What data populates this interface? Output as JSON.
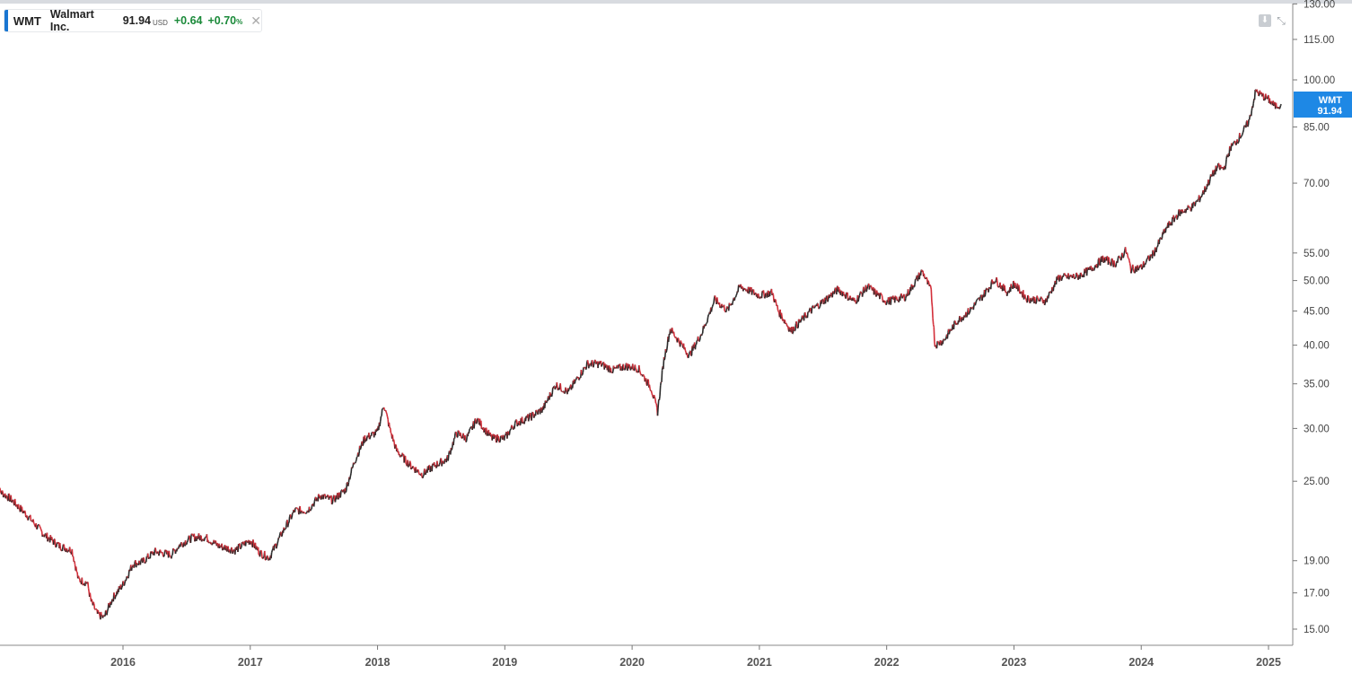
{
  "legend": {
    "symbol": "WMT",
    "name": "Walmart Inc.",
    "price": "91.94",
    "currency": "USD",
    "change": "+0.64",
    "change_pct": "+0.70",
    "pct_symbol": "%"
  },
  "price_tag": {
    "symbol": "WMT",
    "price": "91.94"
  },
  "colors": {
    "up": "#2b2b2b",
    "down": "#d32f3a",
    "accent": "#1e88e5",
    "change": "#1b8a3a"
  },
  "chart_data": {
    "type": "line",
    "title": "",
    "xlabel": "",
    "ylabel": "",
    "y_scale": "log",
    "ylim": [
      14.5,
      130
    ],
    "xlim": [
      2015.0,
      2025.2
    ],
    "y_ticks": [
      15,
      17,
      19,
      25,
      30,
      35,
      40,
      45,
      50,
      55,
      70,
      85,
      100,
      115,
      130
    ],
    "y_tick_labels": [
      "15.00",
      "17.00",
      "19.00",
      "25.00",
      "30.00",
      "35.00",
      "40.00",
      "45.00",
      "50.00",
      "55.00",
      "70.00",
      "85.00",
      "100.00",
      "115.00",
      "130.00"
    ],
    "x_ticks": [
      2016,
      2017,
      2018,
      2019,
      2020,
      2021,
      2022,
      2023,
      2024,
      2025
    ],
    "x_tick_labels": [
      "2016",
      "2017",
      "2018",
      "2019",
      "2020",
      "2021",
      "2022",
      "2023",
      "2024",
      "2025"
    ],
    "series": [
      {
        "x": [
          2015.0,
          2015.12,
          2015.25,
          2015.38,
          2015.5,
          2015.6,
          2015.65,
          2015.72,
          2015.75,
          2015.8,
          2015.85,
          2015.92,
          2016.0,
          2016.08,
          2016.15,
          2016.25,
          2016.38,
          2016.45,
          2016.55,
          2016.65,
          2016.75,
          2016.88,
          2017.0,
          2017.08,
          2017.15,
          2017.25,
          2017.35,
          2017.45,
          2017.55,
          2017.65,
          2017.75,
          2017.82,
          2017.9,
          2018.0,
          2018.05,
          2018.1,
          2018.15,
          2018.25,
          2018.35,
          2018.45,
          2018.55,
          2018.62,
          2018.7,
          2018.78,
          2018.85,
          2018.9,
          2019.0,
          2019.08,
          2019.2,
          2019.3,
          2019.4,
          2019.5,
          2019.55,
          2019.65,
          2019.75,
          2019.85,
          2019.95,
          2020.05,
          2020.15,
          2020.2,
          2020.25,
          2020.3,
          2020.4,
          2020.45,
          2020.55,
          2020.65,
          2020.75,
          2020.85,
          2021.0,
          2021.1,
          2021.15,
          2021.25,
          2021.4,
          2021.5,
          2021.62,
          2021.75,
          2021.85,
          2022.0,
          2022.15,
          2022.28,
          2022.35,
          2022.38,
          2022.45,
          2022.55,
          2022.65,
          2022.75,
          2022.85,
          2022.95,
          2023.0,
          2023.1,
          2023.25,
          2023.35,
          2023.5,
          2023.6,
          2023.7,
          2023.8,
          2023.88,
          2023.92,
          2024.0,
          2024.1,
          2024.2,
          2024.3,
          2024.4,
          2024.45,
          2024.5,
          2024.55,
          2024.6,
          2024.65,
          2024.7,
          2024.75,
          2024.8,
          2024.85,
          2024.9,
          2024.95,
          2025.0,
          2025.05,
          2025.1
        ],
        "y": [
          24.4,
          23.5,
          22.2,
          20.8,
          20.0,
          19.7,
          17.8,
          17.6,
          16.5,
          15.8,
          15.6,
          16.7,
          17.5,
          18.8,
          18.9,
          19.6,
          19.4,
          20.1,
          20.6,
          20.6,
          20.0,
          19.7,
          20.4,
          19.5,
          19.2,
          20.9,
          22.6,
          22.6,
          23.8,
          23.4,
          24.3,
          26.8,
          29.0,
          29.6,
          32.6,
          29.8,
          27.8,
          26.5,
          25.6,
          26.4,
          27.0,
          29.5,
          29.0,
          31.0,
          29.8,
          29.0,
          29.0,
          30.5,
          31.2,
          32.1,
          34.9,
          34.0,
          35.2,
          37.5,
          37.5,
          36.7,
          37.2,
          36.9,
          34.5,
          31.8,
          38.0,
          42.3,
          39.8,
          38.6,
          41.8,
          46.8,
          45.1,
          49.0,
          47.5,
          48.0,
          45.0,
          42.0,
          45.0,
          46.5,
          48.5,
          46.5,
          49.0,
          46.5,
          47.3,
          51.7,
          48.2,
          40.0,
          40.7,
          43.4,
          45.0,
          47.3,
          50.2,
          48.0,
          49.5,
          47.0,
          46.6,
          50.5,
          50.7,
          51.9,
          53.9,
          53.0,
          55.5,
          52.0,
          52.3,
          55.0,
          60.0,
          63.2,
          64.5,
          66.0,
          68.4,
          71.5,
          74.0,
          73.5,
          79.0,
          81.0,
          83.5,
          87.0,
          96.2,
          94.7,
          93.5,
          91.3,
          91.94
        ]
      }
    ]
  }
}
